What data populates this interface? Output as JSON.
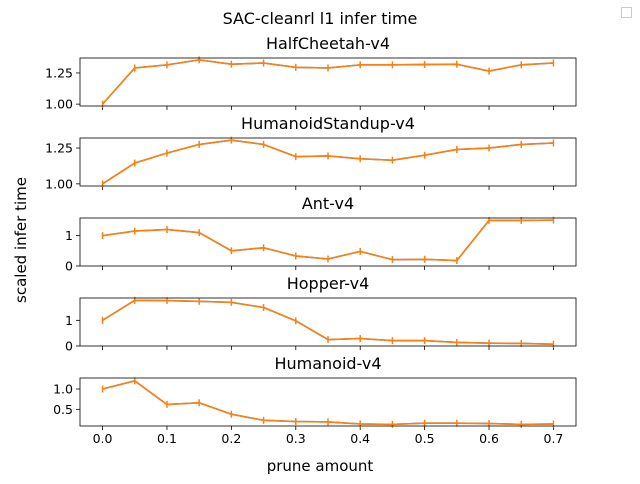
{
  "figure": {
    "suptitle": "SAC-cleanrl l1 infer time",
    "ylabel": "scaled infer time",
    "xlabel": "prune amount",
    "line_color": "#ff7f0e",
    "overlay_color": "#1f77b4"
  },
  "chart_data": [
    {
      "type": "line",
      "title": "HalfCheetah-v4",
      "x": [
        0.0,
        0.05,
        0.1,
        0.15,
        0.2,
        0.25,
        0.3,
        0.35,
        0.4,
        0.45,
        0.5,
        0.55,
        0.6,
        0.65,
        0.7
      ],
      "y": [
        1.0,
        1.29,
        1.315,
        1.355,
        1.32,
        1.33,
        1.295,
        1.29,
        1.315,
        1.315,
        1.318,
        1.32,
        1.265,
        1.315,
        1.33
      ],
      "ylim": [
        0.985,
        1.37
      ],
      "yticks": [
        "1.00",
        "1.25"
      ],
      "ytick_values": [
        1.0,
        1.25
      ],
      "show_x_ticklabels": false
    },
    {
      "type": "line",
      "title": "HumanoidStandup-v4",
      "x": [
        0.0,
        0.05,
        0.1,
        0.15,
        0.2,
        0.25,
        0.3,
        0.35,
        0.4,
        0.45,
        0.5,
        0.55,
        0.6,
        0.65,
        0.7
      ],
      "y": [
        1.0,
        1.145,
        1.215,
        1.275,
        1.305,
        1.275,
        1.19,
        1.195,
        1.175,
        1.165,
        1.2,
        1.24,
        1.25,
        1.275,
        1.285
      ],
      "ylim": [
        0.985,
        1.32
      ],
      "yticks": [
        "1.00",
        "1.25"
      ],
      "ytick_values": [
        1.0,
        1.25
      ],
      "show_x_ticklabels": false
    },
    {
      "type": "line",
      "title": "Ant-v4",
      "x": [
        0.0,
        0.05,
        0.1,
        0.15,
        0.2,
        0.25,
        0.3,
        0.35,
        0.4,
        0.45,
        0.5,
        0.55,
        0.6,
        0.65,
        0.7
      ],
      "y": [
        1.0,
        1.15,
        1.2,
        1.1,
        0.5,
        0.6,
        0.33,
        0.23,
        0.48,
        0.21,
        0.22,
        0.18,
        1.5,
        1.5,
        1.51
      ],
      "ylim": [
        0.0,
        1.58
      ],
      "yticks": [
        "0",
        "1"
      ],
      "ytick_values": [
        0,
        1
      ],
      "show_x_ticklabels": false
    },
    {
      "type": "line",
      "title": "Hopper-v4",
      "x": [
        0.0,
        0.05,
        0.1,
        0.15,
        0.2,
        0.25,
        0.3,
        0.35,
        0.4,
        0.45,
        0.5,
        0.55,
        0.6,
        0.65,
        0.7
      ],
      "y": [
        1.0,
        1.78,
        1.77,
        1.74,
        1.7,
        1.5,
        0.98,
        0.25,
        0.29,
        0.21,
        0.21,
        0.14,
        0.11,
        0.1,
        0.07
      ],
      "ylim": [
        0.0,
        1.87
      ],
      "yticks": [
        "0",
        "1"
      ],
      "ytick_values": [
        0,
        1
      ],
      "show_x_ticklabels": false
    },
    {
      "type": "line",
      "title": "Humanoid-v4",
      "x": [
        0.0,
        0.05,
        0.1,
        0.15,
        0.2,
        0.25,
        0.3,
        0.35,
        0.4,
        0.45,
        0.5,
        0.55,
        0.6,
        0.65,
        0.7
      ],
      "y": [
        1.0,
        1.2,
        0.62,
        0.66,
        0.38,
        0.23,
        0.2,
        0.19,
        0.14,
        0.13,
        0.16,
        0.16,
        0.15,
        0.13,
        0.14
      ],
      "ylim": [
        0.09,
        1.27
      ],
      "yticks": [
        "0.5",
        "1.0"
      ],
      "ytick_values": [
        0.5,
        1.0
      ],
      "show_x_ticklabels": true,
      "xticks": [
        "0.0",
        "0.1",
        "0.2",
        "0.3",
        "0.4",
        "0.5",
        "0.6",
        "0.7"
      ],
      "xtick_values": [
        0.0,
        0.1,
        0.2,
        0.3,
        0.4,
        0.5,
        0.6,
        0.7
      ]
    }
  ]
}
